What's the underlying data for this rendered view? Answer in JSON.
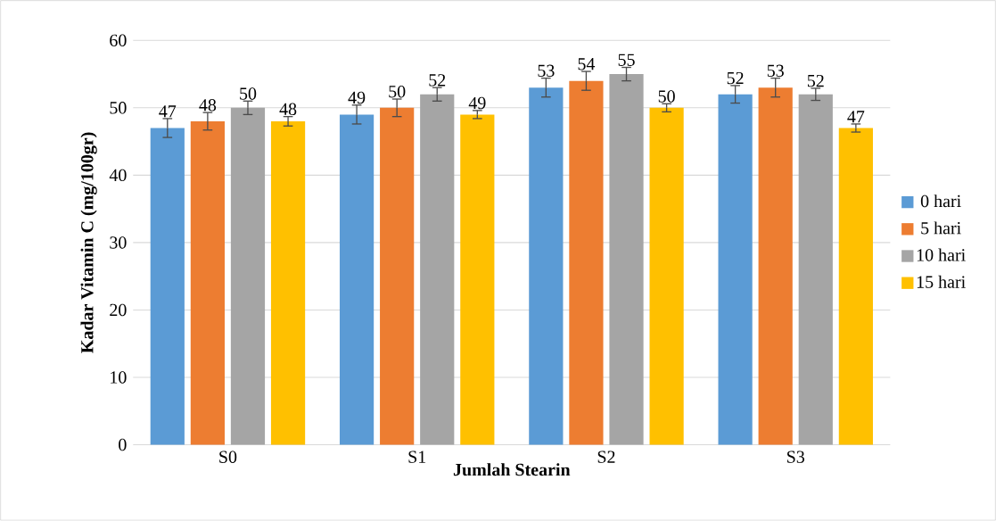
{
  "chart_data": {
    "type": "bar",
    "xlabel": "Jumlah Stearin",
    "ylabel": "Kadar Vitamin C (mg/100gr)",
    "categories": [
      "S0",
      "S1",
      "S2",
      "S3"
    ],
    "series": [
      {
        "name": "0 hari",
        "color": "#5b9bd5",
        "values": [
          47,
          49,
          53,
          52
        ],
        "errors": [
          1.4,
          1.4,
          1.4,
          1.3
        ]
      },
      {
        "name": "5 hari",
        "color": "#ed7d31",
        "values": [
          48,
          50,
          54,
          53
        ],
        "errors": [
          1.3,
          1.3,
          1.4,
          1.4
        ]
      },
      {
        "name": "10 hari",
        "color": "#a5a5a5",
        "values": [
          50,
          52,
          55,
          52
        ],
        "errors": [
          1.0,
          1.0,
          1.0,
          0.9
        ]
      },
      {
        "name": "15 hari",
        "color": "#ffc000",
        "values": [
          48,
          49,
          50,
          47
        ],
        "errors": [
          0.7,
          0.6,
          0.6,
          0.6
        ]
      }
    ],
    "ylim": [
      0,
      60
    ],
    "yticks": [
      0,
      10,
      20,
      30,
      40,
      50,
      60
    ],
    "grid": "y",
    "legend": "right",
    "data_labels": true
  }
}
